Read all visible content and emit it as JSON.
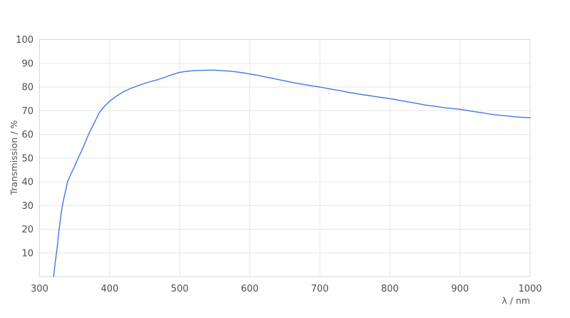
{
  "chart_data": {
    "type": "line",
    "title": "",
    "xlabel": "λ / nm",
    "ylabel": "Transmission / %",
    "xlim": [
      300,
      1000
    ],
    "ylim": [
      0,
      100
    ],
    "x_ticks": [
      300,
      400,
      500,
      600,
      700,
      800,
      900,
      1000
    ],
    "y_ticks": [
      10,
      20,
      30,
      40,
      50,
      60,
      70,
      80,
      90,
      100
    ],
    "grid": true,
    "legend": "none",
    "colors": {
      "line": "#4079e4",
      "grid": "#e6e6e6",
      "frame": "#d9d9d9",
      "label": "#4d4d4d",
      "background": "#ffffff"
    },
    "series": [
      {
        "name": "Transmission",
        "points": [
          [
            320,
            0
          ],
          [
            322,
            5
          ],
          [
            325,
            12
          ],
          [
            328,
            20
          ],
          [
            331,
            27
          ],
          [
            334,
            32
          ],
          [
            337,
            36
          ],
          [
            340,
            40
          ],
          [
            345,
            43.5
          ],
          [
            350,
            46.5
          ],
          [
            355,
            50
          ],
          [
            360,
            53
          ],
          [
            365,
            56.5
          ],
          [
            370,
            60
          ],
          [
            375,
            63
          ],
          [
            380,
            66
          ],
          [
            385,
            69
          ],
          [
            390,
            71
          ],
          [
            395,
            72.5
          ],
          [
            400,
            74
          ],
          [
            410,
            76.2
          ],
          [
            420,
            78
          ],
          [
            430,
            79.4
          ],
          [
            440,
            80.5
          ],
          [
            450,
            81.5
          ],
          [
            460,
            82.4
          ],
          [
            470,
            83.2
          ],
          [
            480,
            84.2
          ],
          [
            490,
            85.3
          ],
          [
            500,
            86.2
          ],
          [
            510,
            86.6
          ],
          [
            520,
            86.9
          ],
          [
            530,
            87.0
          ],
          [
            540,
            87.1
          ],
          [
            550,
            87.1
          ],
          [
            560,
            86.9
          ],
          [
            570,
            86.7
          ],
          [
            580,
            86.4
          ],
          [
            590,
            86.0
          ],
          [
            600,
            85.5
          ],
          [
            610,
            85.0
          ],
          [
            620,
            84.4
          ],
          [
            630,
            83.8
          ],
          [
            640,
            83.2
          ],
          [
            650,
            82.6
          ],
          [
            660,
            82.0
          ],
          [
            670,
            81.4
          ],
          [
            680,
            80.9
          ],
          [
            690,
            80.4
          ],
          [
            700,
            80.0
          ],
          [
            710,
            79.4
          ],
          [
            720,
            78.9
          ],
          [
            730,
            78.4
          ],
          [
            740,
            77.8
          ],
          [
            750,
            77.3
          ],
          [
            760,
            76.8
          ],
          [
            770,
            76.4
          ],
          [
            780,
            75.9
          ],
          [
            790,
            75.5
          ],
          [
            800,
            75.1
          ],
          [
            810,
            74.6
          ],
          [
            820,
            74.0
          ],
          [
            830,
            73.5
          ],
          [
            840,
            73.0
          ],
          [
            850,
            72.4
          ],
          [
            860,
            72.0
          ],
          [
            870,
            71.6
          ],
          [
            880,
            71.2
          ],
          [
            890,
            70.9
          ],
          [
            900,
            70.6
          ],
          [
            910,
            70.1
          ],
          [
            920,
            69.6
          ],
          [
            930,
            69.2
          ],
          [
            940,
            68.7
          ],
          [
            950,
            68.3
          ],
          [
            960,
            68.0
          ],
          [
            970,
            67.7
          ],
          [
            980,
            67.4
          ],
          [
            990,
            67.2
          ],
          [
            1000,
            67.0
          ]
        ]
      }
    ]
  }
}
